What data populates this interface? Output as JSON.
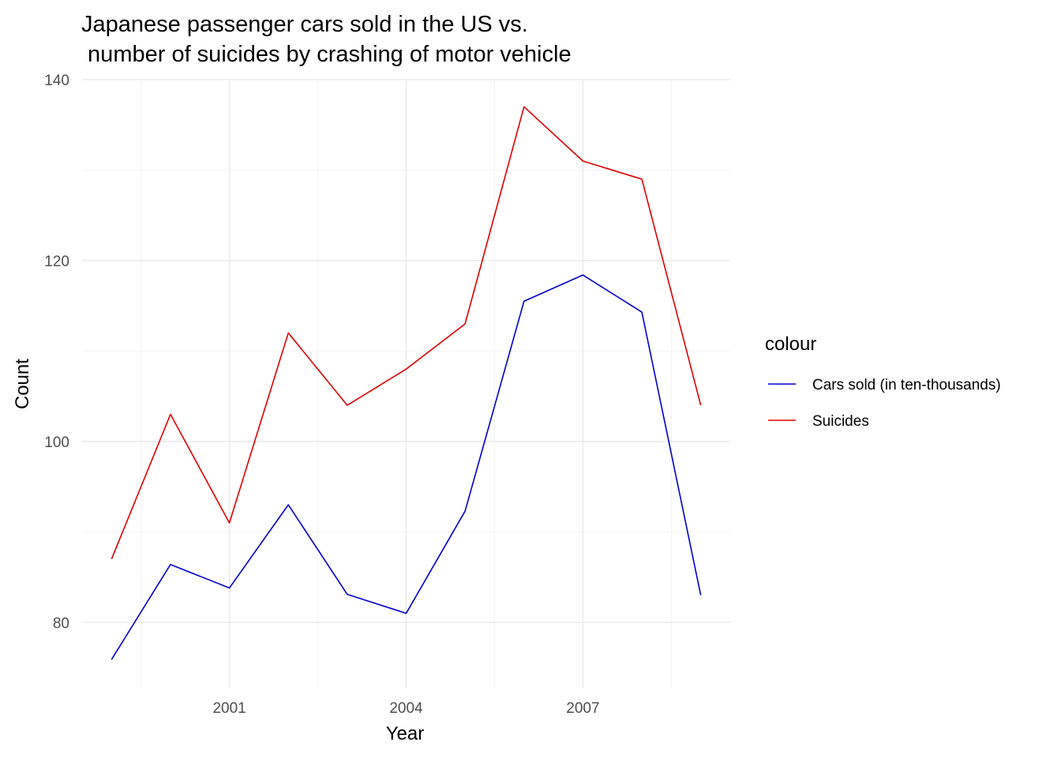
{
  "chart_data": {
    "type": "line",
    "title_lines": [
      "Japanese passenger cars sold in the US vs.",
      " number of suicides by crashing of motor vehicle"
    ],
    "xlabel": "Year",
    "ylabel": "Count",
    "x": [
      1999,
      2000,
      2001,
      2002,
      2003,
      2004,
      2005,
      2006,
      2007,
      2008,
      2009
    ],
    "xlim": [
      1998.5,
      2009.5
    ],
    "ylim": [
      72.7,
      140
    ],
    "x_ticks": [
      2001,
      2004,
      2007
    ],
    "x_tick_labels": [
      "2001",
      "2004",
      "2007"
    ],
    "y_ticks": [
      80,
      100,
      120,
      140
    ],
    "y_tick_labels": [
      "80",
      "100",
      "120",
      "140"
    ],
    "grid": true,
    "legend": {
      "title": "colour",
      "position": "right"
    },
    "series": [
      {
        "name": "Cars sold (in ten-thousands)",
        "color": "#0000cd",
        "values": [
          75.9,
          86.4,
          83.8,
          93.0,
          83.1,
          81.0,
          92.3,
          115.5,
          118.4,
          114.3,
          83.0
        ]
      },
      {
        "name": "Suicides",
        "color": "#dd0000",
        "values": [
          87,
          103,
          91,
          112,
          104,
          108,
          113,
          137,
          131,
          129,
          104
        ]
      }
    ]
  }
}
